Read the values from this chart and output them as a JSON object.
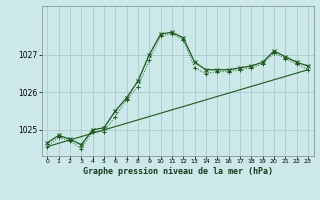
{
  "title": "Graphe pression niveau de la mer (hPa)",
  "bg_color": "#cce8e8",
  "line_color": "#1a5c1a",
  "grid_color": "#aacccc",
  "xlim": [
    -0.5,
    23.5
  ],
  "ylim": [
    1024.3,
    1028.3
  ],
  "yticks": [
    1025,
    1026,
    1027
  ],
  "xticks": [
    0,
    1,
    2,
    3,
    4,
    5,
    6,
    7,
    8,
    9,
    10,
    11,
    12,
    13,
    14,
    15,
    16,
    17,
    18,
    19,
    20,
    21,
    22,
    23
  ],
  "series1_x": [
    0,
    1,
    2,
    3,
    4,
    5,
    6,
    7,
    8,
    9,
    10,
    11,
    12,
    13,
    14,
    15,
    16,
    17,
    18,
    19,
    20,
    21,
    22,
    23
  ],
  "series1_y": [
    1024.65,
    1024.85,
    1024.75,
    1024.6,
    1025.0,
    1025.05,
    1025.5,
    1025.85,
    1026.3,
    1027.0,
    1027.55,
    1027.6,
    1027.45,
    1026.8,
    1026.6,
    1026.6,
    1026.6,
    1026.65,
    1026.7,
    1026.8,
    1027.1,
    1026.95,
    1026.8,
    1026.7
  ],
  "series2_x": [
    0,
    1,
    2,
    3,
    4,
    5,
    6,
    7,
    8,
    9,
    10,
    11,
    12,
    13,
    14,
    15,
    16,
    17,
    18,
    19,
    20,
    21,
    22,
    23
  ],
  "series2_y": [
    1024.55,
    1024.8,
    1024.7,
    1024.5,
    1024.95,
    1024.95,
    1025.35,
    1025.8,
    1026.15,
    1026.85,
    1027.5,
    1027.55,
    1027.4,
    1026.65,
    1026.5,
    1026.55,
    1026.55,
    1026.6,
    1026.65,
    1026.75,
    1027.05,
    1026.9,
    1026.75,
    1026.6
  ],
  "series3_x": [
    0,
    23
  ],
  "series3_y": [
    1024.55,
    1026.6
  ]
}
